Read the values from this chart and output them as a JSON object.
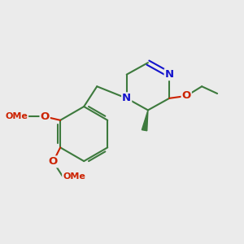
{
  "bg_color": "#ebebeb",
  "bond_color": "#3d7a3d",
  "n_color": "#1414cc",
  "o_color": "#cc2200",
  "bond_width": 1.5,
  "font_size_atom": 9.5,
  "fig_size": [
    3.0,
    3.0
  ],
  "dpi": 100,
  "xlim": [
    0,
    10
  ],
  "ylim": [
    0,
    10
  ]
}
